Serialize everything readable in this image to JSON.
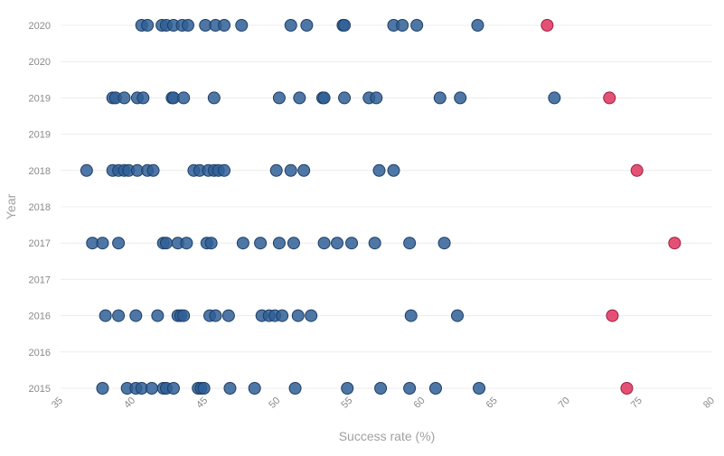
{
  "chart_data": {
    "type": "scatter",
    "xlabel": "Success rate (%)",
    "ylabel": "Year",
    "xlim": [
      35,
      80
    ],
    "x_ticks": [
      "35",
      "40",
      "45",
      "50",
      "55",
      "60",
      "65",
      "70",
      "75",
      "80"
    ],
    "y_tick_labels": [
      "2015",
      "2016",
      "2016",
      "2017",
      "2017",
      "2018",
      "2018",
      "2019",
      "2019",
      "2020",
      "2020"
    ],
    "grid": "horizontal",
    "colors": {
      "regular": "#2f5f96",
      "highlight": "#e0335e"
    },
    "series": [
      {
        "year": "2020",
        "regular": [
          40.6,
          41.0,
          42.0,
          42.3,
          42.8,
          43.4,
          43.8,
          45.0,
          45.7,
          46.3,
          47.5,
          50.9,
          52.0,
          54.5,
          54.6,
          58.0,
          58.6,
          59.6,
          63.8
        ],
        "highlight": [
          68.6
        ]
      },
      {
        "year": "2019",
        "regular": [
          38.6,
          38.8,
          39.4,
          40.3,
          40.7,
          42.7,
          42.8,
          43.5,
          45.6,
          50.1,
          51.5,
          53.1,
          53.2,
          54.6,
          56.3,
          56.8,
          61.2,
          62.6,
          69.1
        ],
        "highlight": [
          72.9
        ]
      },
      {
        "year": "2018",
        "regular": [
          36.8,
          38.6,
          39.0,
          39.4,
          39.7,
          40.3,
          41.0,
          41.4,
          44.2,
          44.6,
          45.2,
          45.6,
          45.9,
          46.3,
          49.9,
          50.9,
          51.8,
          57.0,
          58.0
        ],
        "highlight": [
          74.8
        ]
      },
      {
        "year": "2017",
        "regular": [
          37.2,
          37.9,
          39.0,
          42.1,
          42.3,
          43.1,
          43.7,
          45.1,
          45.4,
          47.6,
          48.8,
          50.1,
          51.1,
          53.2,
          54.1,
          55.1,
          56.7,
          59.1,
          61.5
        ],
        "highlight": [
          77.4
        ]
      },
      {
        "year": "2016",
        "regular": [
          38.1,
          39.0,
          40.2,
          41.7,
          43.1,
          43.3,
          43.5,
          45.3,
          45.7,
          46.6,
          48.9,
          49.4,
          49.8,
          50.3,
          51.4,
          52.3,
          59.2,
          62.4
        ],
        "highlight": [
          73.1
        ]
      },
      {
        "year": "2015",
        "regular": [
          37.9,
          39.6,
          40.2,
          40.6,
          41.3,
          42.1,
          42.3,
          42.8,
          44.5,
          44.7,
          44.9,
          46.7,
          48.4,
          51.2,
          54.8,
          57.1,
          59.1,
          60.9,
          63.9
        ],
        "highlight": [
          74.1
        ]
      }
    ]
  }
}
